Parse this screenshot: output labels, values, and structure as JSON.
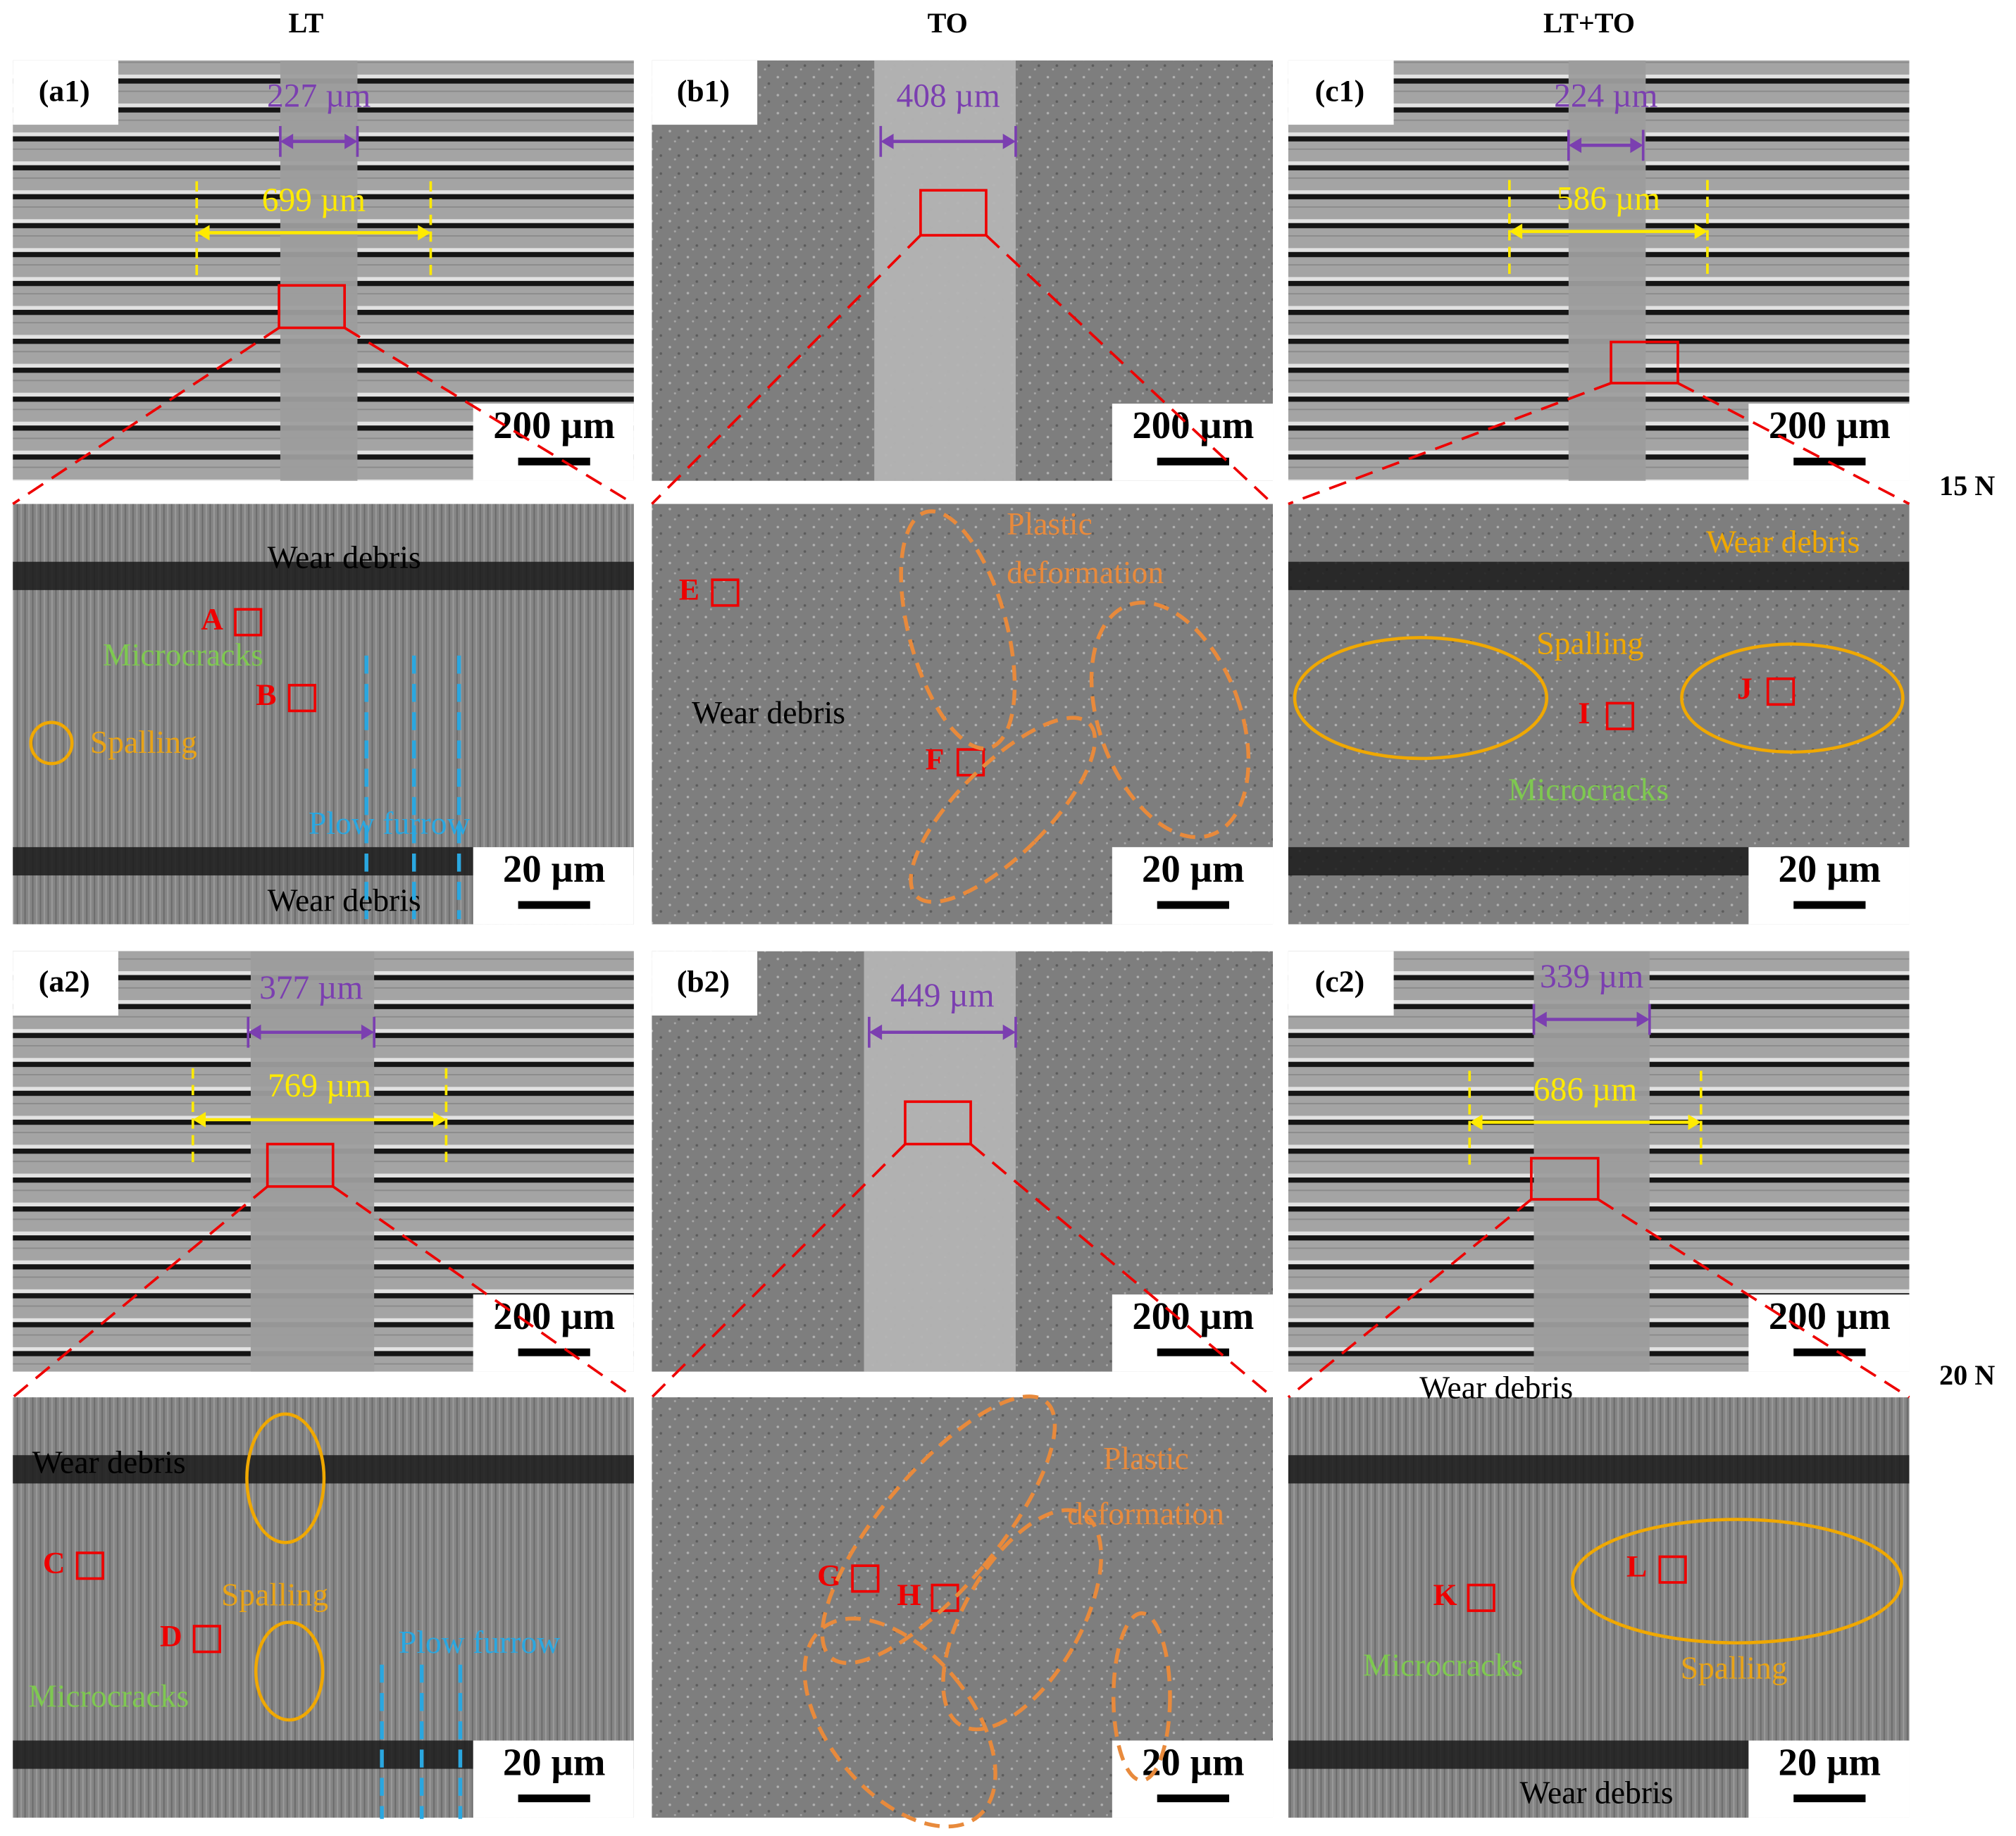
{
  "columns": [
    "LT",
    "TO",
    "LT+TO"
  ],
  "loads": [
    "15 N",
    "20 N"
  ],
  "overview": [
    {
      "label": "(a1)",
      "scale_bar": "200 µm",
      "widths": [
        "227 µm",
        "699 µm"
      ]
    },
    {
      "label": "(b1)",
      "scale_bar": "200 µm",
      "widths": [
        "408 µm"
      ]
    },
    {
      "label": "(c1)",
      "scale_bar": "200 µm",
      "widths": [
        "224 µm",
        "586 µm"
      ]
    },
    {
      "label": "(a2)",
      "scale_bar": "200 µm",
      "widths": [
        "377 µm",
        "769 µm"
      ]
    },
    {
      "label": "(b2)",
      "scale_bar": "200 µm",
      "widths": [
        "449 µm"
      ]
    },
    {
      "label": "(c2)",
      "scale_bar": "200 µm",
      "widths": [
        "339 µm",
        "686 µm"
      ]
    }
  ],
  "detail": [
    {
      "scale_bar": "20 µm",
      "points": [
        "A",
        "B"
      ],
      "annotations": [
        "Wear debris",
        "Wear debris",
        "Microcracks",
        "Spalling",
        "Plow furrow"
      ]
    },
    {
      "scale_bar": "20 µm",
      "points": [
        "E",
        "F"
      ],
      "annotations": [
        "Plastic",
        "deformation",
        "Wear debris"
      ]
    },
    {
      "scale_bar": "20 µm",
      "points": [
        "I",
        "J"
      ],
      "annotations": [
        "Wear debris",
        "Spalling",
        "Microcracks"
      ]
    },
    {
      "scale_bar": "20 µm",
      "points": [
        "C",
        "D"
      ],
      "annotations": [
        "Wear debris",
        "Spalling",
        "Microcracks",
        "Plow furrow"
      ]
    },
    {
      "scale_bar": "20 µm",
      "points": [
        "G",
        "H"
      ],
      "annotations": [
        "Plastic",
        "deformation"
      ]
    },
    {
      "scale_bar": "20 µm",
      "points": [
        "K",
        "L"
      ],
      "annotations": [
        "Wear debris",
        "Wear debris",
        "Microcracks",
        "Spalling"
      ]
    }
  ]
}
